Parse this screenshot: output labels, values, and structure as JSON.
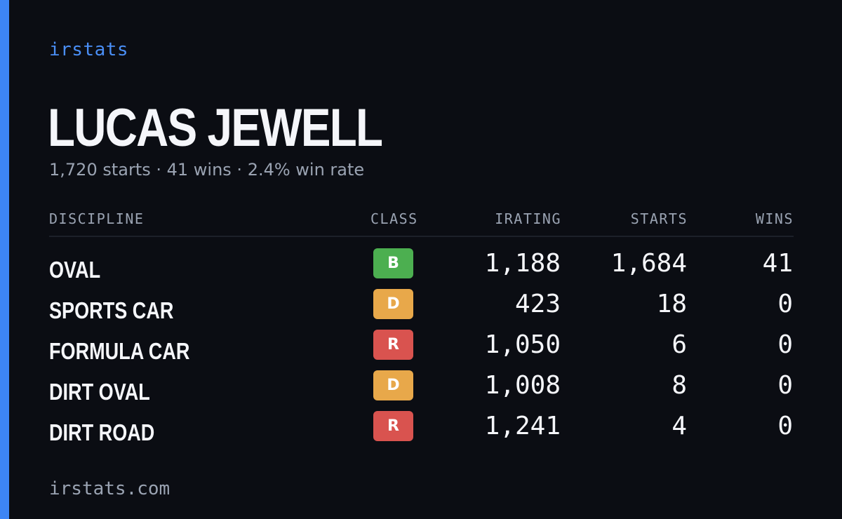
{
  "brand": "irstats",
  "player": {
    "name": "LUCAS JEWELL",
    "summary": "1,720 starts · 41 wins · 2.4% win rate"
  },
  "table": {
    "headers": {
      "discipline": "DISCIPLINE",
      "class": "CLASS",
      "irating": "IRATING",
      "starts": "STARTS",
      "wins": "WINS"
    },
    "rows": [
      {
        "discipline": "OVAL",
        "class": "B",
        "class_color": "#4caf50",
        "irating": "1,188",
        "starts": "1,684",
        "wins": "41"
      },
      {
        "discipline": "SPORTS CAR",
        "class": "D",
        "class_color": "#e8a84a",
        "irating": "423",
        "starts": "18",
        "wins": "0"
      },
      {
        "discipline": "FORMULA CAR",
        "class": "R",
        "class_color": "#d9534f",
        "irating": "1,050",
        "starts": "6",
        "wins": "0"
      },
      {
        "discipline": "DIRT OVAL",
        "class": "D",
        "class_color": "#e8a84a",
        "irating": "1,008",
        "starts": "8",
        "wins": "0"
      },
      {
        "discipline": "DIRT ROAD",
        "class": "R",
        "class_color": "#d9534f",
        "irating": "1,241",
        "starts": "4",
        "wins": "0"
      }
    ]
  },
  "footer": "irstats.com",
  "colors": {
    "accent": "#3d85f5",
    "background": "#0b0d13",
    "muted_text": "#9aa3b2"
  }
}
